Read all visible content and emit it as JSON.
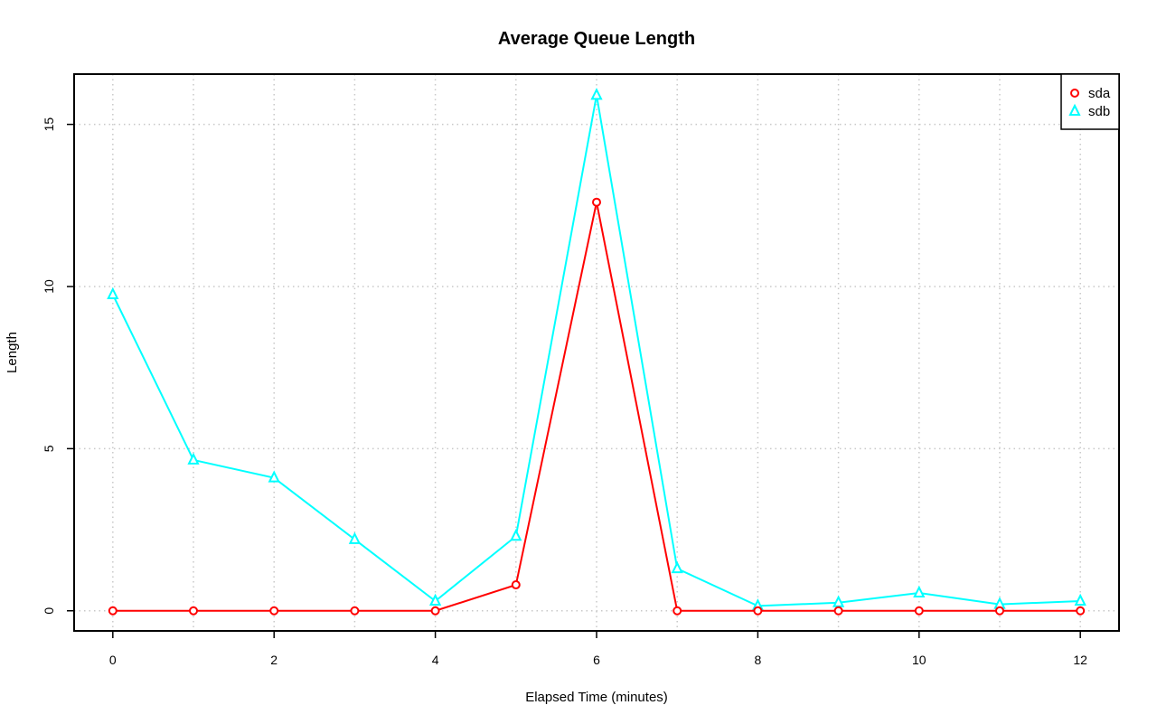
{
  "chart_data": {
    "type": "line",
    "title": "Average Queue Length",
    "xlabel": "Elapsed Time (minutes)",
    "ylabel": "Length",
    "x": [
      0,
      1,
      2,
      3,
      4,
      5,
      6,
      7,
      8,
      9,
      10,
      11,
      12
    ],
    "xlim": [
      -0.48,
      12.48
    ],
    "ylim": [
      -0.62,
      16.55
    ],
    "xticks": [
      0,
      2,
      4,
      6,
      8,
      10,
      12
    ],
    "yticks": [
      0,
      5,
      10,
      15
    ],
    "xgrid": [
      0,
      1,
      2,
      3,
      4,
      5,
      6,
      7,
      8,
      9,
      10,
      11,
      12
    ],
    "ygrid": [
      0,
      5,
      10,
      15
    ],
    "grid": true,
    "legend_position": "top-right",
    "series": [
      {
        "name": "sda",
        "color": "#ff0000",
        "marker": "circle",
        "values": [
          0,
          0,
          0,
          0,
          0,
          0.8,
          12.6,
          0,
          0,
          0,
          0,
          0,
          0
        ]
      },
      {
        "name": "sdb",
        "color": "#00ffff",
        "marker": "triangle",
        "values": [
          9.75,
          4.65,
          4.1,
          2.2,
          0.3,
          2.3,
          15.9,
          1.3,
          0.15,
          0.25,
          0.55,
          0.2,
          0.3
        ]
      }
    ]
  }
}
